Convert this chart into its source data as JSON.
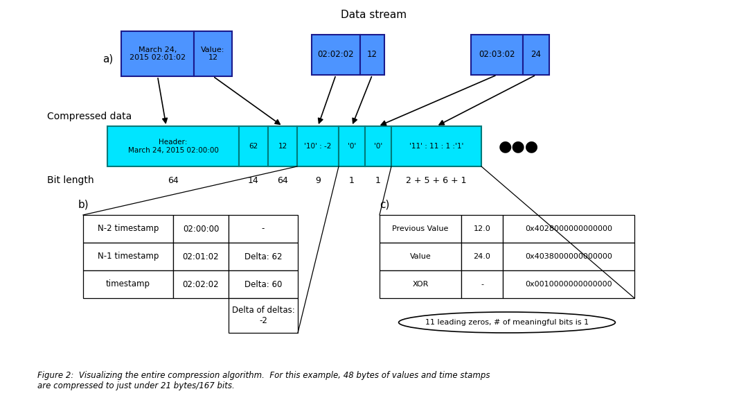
{
  "bg_color": "#ffffff",
  "title_text": "Data stream",
  "label_a": "a)",
  "label_b": "b)",
  "label_c": "c)",
  "compressed_label": "Compressed data",
  "bit_length_label": "Bit length",
  "ds_box_fill": "#4d94ff",
  "ds_box_edge": "#1a1a8c",
  "cd_box_fill": "#00e5ff",
  "cd_box_edge": "#007a7a",
  "dots_text": "●●●",
  "caption": "Figure 2:  Visualizing the entire compression algorithm.  For this example, 48 bytes of values and time stamps\nare compressed to just under 21 bytes/167 bits.",
  "table_b_rows": [
    [
      "N-2 timestamp",
      "02:00:00",
      "-"
    ],
    [
      "N-1 timestamp",
      "02:01:02",
      "Delta: 62"
    ],
    [
      "timestamp",
      "02:02:02",
      "Delta: 60"
    ]
  ],
  "table_c_rows": [
    [
      "Previous Value",
      "12.0",
      "0x4028000000000000"
    ],
    [
      "Value",
      "24.0",
      "0x4038000000000000"
    ],
    [
      "XOR",
      "-",
      "0x0010000000000000"
    ]
  ],
  "oval_text": "11 leading zeros, # of meaningful bits is 1"
}
